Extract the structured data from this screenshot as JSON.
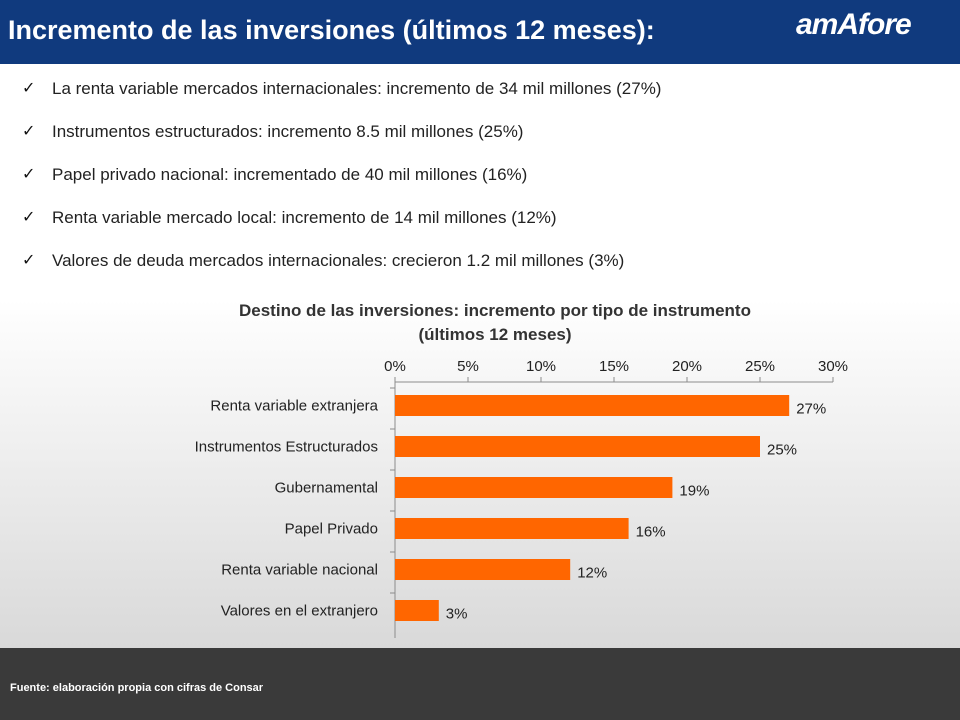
{
  "header": {
    "title": "Incremento de las inversiones (últimos 12 meses):",
    "logo_text": "amAfore",
    "background_color": "#103a7e"
  },
  "bullets": [
    {
      "text": "La renta variable mercados internacionales: incremento de 34 mil millones (27%)"
    },
    {
      "text": "Instrumentos estructurados: incremento 8.5 mil millones (25%)"
    },
    {
      "text": "Papel privado nacional: incrementado de 40 mil millones (16%)"
    },
    {
      "text": "Renta variable mercado local: incremento de 14 mil millones (12%)"
    },
    {
      "text": "Valores de deuda mercados internacionales:  crecieron 1.2 mil millones (3%)"
    }
  ],
  "bullet_icon": "check-icon",
  "chart_data": {
    "type": "bar",
    "orientation": "horizontal",
    "title_lines": [
      "Destino de las inversiones: incremento por tipo de instrumento",
      "(últimos 12 meses)"
    ],
    "categories": [
      "Renta variable extranjera",
      "Instrumentos Estructurados",
      "Gubernamental",
      "Papel Privado",
      "Renta variable nacional",
      "Valores en el extranjero"
    ],
    "values": [
      27,
      25,
      19,
      16,
      12,
      3
    ],
    "value_labels": [
      "27%",
      "25%",
      "19%",
      "16%",
      "12%",
      "3%"
    ],
    "xlim": [
      0,
      30
    ],
    "ticks": [
      0,
      5,
      10,
      15,
      20,
      25,
      30
    ],
    "tick_labels": [
      "0%",
      "5%",
      "10%",
      "15%",
      "20%",
      "25%",
      "30%"
    ],
    "axis_position": "top",
    "grid": false,
    "bar_color": "#ff6600"
  },
  "footer": {
    "source": "Fuente: elaboración propia con cifras de Consar"
  }
}
